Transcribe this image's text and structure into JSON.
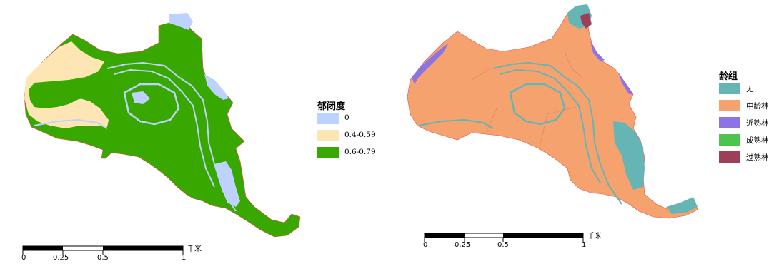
{
  "maps": [
    {
      "legend": {
        "title": "郁闭度",
        "items": [
          {
            "label": "0",
            "color": "#bed2ff"
          },
          {
            "label": "0.4-0.59",
            "color": "#fde6b4"
          },
          {
            "label": "0.6-0.79",
            "color": "#38a800"
          }
        ]
      },
      "scale": {
        "ticks": [
          "0",
          "0.25",
          "0.5",
          "1"
        ],
        "unit": "千米"
      }
    },
    {
      "legend": {
        "title": "龄组",
        "items": [
          {
            "label": "无",
            "color": "#66b5b5"
          },
          {
            "label": "中龄林",
            "color": "#f5a26e"
          },
          {
            "label": "近熟林",
            "color": "#8c73e6"
          },
          {
            "label": "成熟林",
            "color": "#4dc44d"
          },
          {
            "label": "过熟林",
            "color": "#9c405a"
          }
        ]
      },
      "scale": {
        "ticks": [
          "0",
          "0.25",
          "0.5",
          "1"
        ],
        "unit": "千米"
      }
    }
  ]
}
